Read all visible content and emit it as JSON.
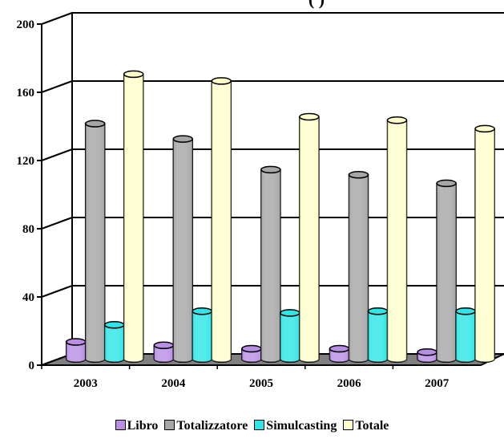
{
  "chart_data": {
    "type": "bar",
    "title": "(                           )",
    "categories": [
      "2003",
      "2004",
      "2005",
      "2006",
      "2007"
    ],
    "series": [
      {
        "name": "Libro",
        "color": "#b98fe6",
        "values": [
          10,
          8,
          6,
          6,
          4
        ]
      },
      {
        "name": "Totalizzatore",
        "color": "#a6a6a6",
        "values": [
          138,
          129,
          111,
          108,
          103
        ]
      },
      {
        "name": "Simulcasting",
        "color": "#2ee6e6",
        "values": [
          20,
          28,
          27,
          28,
          28
        ]
      },
      {
        "name": "Totale",
        "color": "#ffffcc",
        "values": [
          167,
          163,
          142,
          140,
          135
        ]
      }
    ],
    "ylim": [
      0,
      200
    ],
    "yticks": [
      "0",
      "40",
      "80",
      "120",
      "160",
      "200"
    ],
    "grid": true,
    "legend_position": "bottom"
  }
}
